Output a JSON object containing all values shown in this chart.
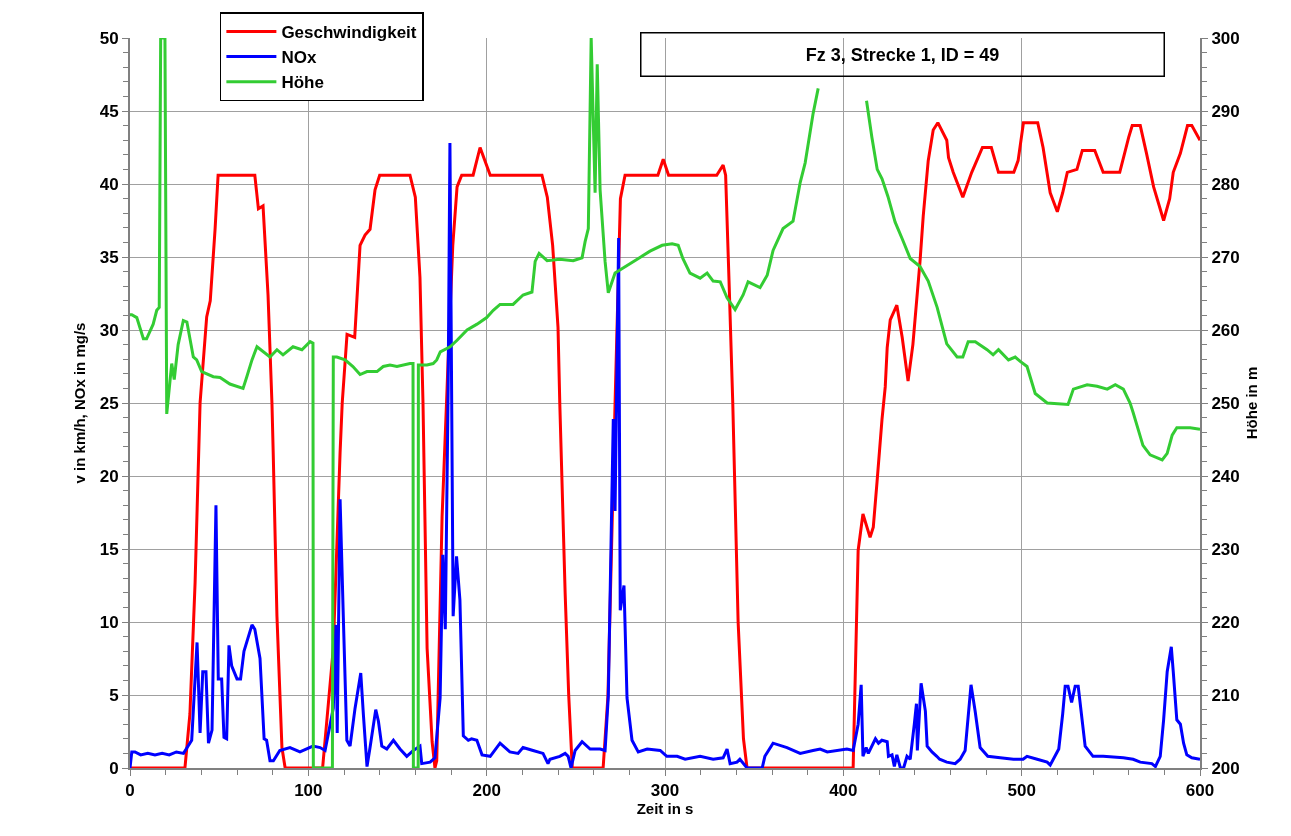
{
  "chart_data": {
    "type": "line",
    "title": "Fz 3, Strecke 1, ID = 49",
    "xlabel": "Zeit in s",
    "ylabel": "v in km/h, NOx in mg/s",
    "y2label": "Höhe in m",
    "xlim": [
      0,
      600
    ],
    "xticks": [
      0,
      100,
      200,
      300,
      400,
      500,
      600
    ],
    "ylim": [
      0,
      50
    ],
    "yticks": [
      0,
      5,
      10,
      15,
      20,
      25,
      30,
      35,
      40,
      45,
      50
    ],
    "y2lim": [
      200,
      300
    ],
    "y2ticks": [
      200,
      210,
      220,
      230,
      240,
      250,
      260,
      270,
      280,
      290,
      300
    ],
    "grid": true,
    "legend": "top left",
    "marker": "none",
    "line_style": "solid",
    "series": [
      {
        "name": "Geschwindigkeit",
        "color": "#ff0000",
        "x": [
          0,
          30.8,
          33.6,
          36.5,
          39.3,
          43,
          45,
          47.7,
          49.4,
          50,
          70,
          72,
          74.6,
          77.4,
          79.6,
          80.3,
          82.4,
          85.2,
          87,
          108,
          114,
          117.8,
          119,
          121.7,
          126,
          129,
          131.8,
          134.6,
          137.4,
          140,
          157,
          160,
          162.6,
          164.3,
          166.6,
          169.4,
          171,
          172,
          175,
          177.8,
          178.4,
          181,
          183.4,
          186,
          192.4,
          196.3,
          202,
          231,
          234,
          237,
          240,
          241,
          244,
          246,
          248,
          265.3,
          268,
          272,
          275,
          277.6,
          296,
          299,
          302,
          329,
          332.6,
          334,
          336,
          338,
          341,
          344,
          346,
          405.5,
          408.3,
          411,
          415,
          416.8,
          418.9,
          421.7,
          423.5,
          424.6,
          426.3,
          430,
          433,
          436.3,
          439,
          443,
          444.8,
          447.6,
          450.4,
          453,
          458,
          459,
          461.6,
          467,
          472,
          478,
          483,
          487,
          495.6,
          498,
          501,
          509,
          512,
          516,
          520,
          523,
          525.6,
          531,
          534,
          541,
          545.7,
          555,
          560,
          562,
          566.5,
          570,
          574,
          579.6,
          583,
          585,
          589,
          593,
          595.4,
          600
        ],
        "values": [
          0,
          0,
          3.7,
          12.7,
          25,
          30.9,
          32,
          36.9,
          40.6,
          40.6,
          40.6,
          38.3,
          38.5,
          32.4,
          25,
          21.6,
          10.4,
          1.4,
          0,
          0,
          8.2,
          21.6,
          25,
          29.7,
          29.5,
          35.8,
          36.5,
          36.9,
          39.6,
          40.6,
          40.6,
          39.1,
          33.6,
          25,
          8.2,
          1.8,
          0,
          0.5,
          17.2,
          26,
          28,
          35.8,
          39.8,
          40.6,
          40.6,
          42.5,
          40.6,
          40.6,
          39.1,
          35.8,
          30.2,
          25,
          12,
          5,
          0,
          0,
          4.9,
          25,
          39,
          40.6,
          40.6,
          41.7,
          40.6,
          40.6,
          41.3,
          40.6,
          33,
          25,
          10,
          2,
          0,
          0,
          14.9,
          17.4,
          15.8,
          16.5,
          19.6,
          23.9,
          26.1,
          28.8,
          30.7,
          31.7,
          29.5,
          26.5,
          29,
          34.7,
          37.8,
          41.6,
          43.7,
          44.2,
          43,
          41.8,
          40.8,
          39.1,
          40.8,
          42.5,
          42.5,
          40.8,
          40.8,
          41.6,
          44.2,
          44.2,
          42.5,
          39.4,
          38.1,
          39.4,
          40.8,
          41,
          42.3,
          42.3,
          40.8,
          40.8,
          43.2,
          44,
          44,
          42.1,
          39.8,
          37.5,
          39,
          40.8,
          42.1,
          44,
          44,
          43
        ]
      },
      {
        "name": "NOx",
        "color": "#0000ff",
        "x": [
          0,
          1,
          2.8,
          6,
          10,
          14,
          18,
          22,
          26,
          30,
          34.6,
          37.6,
          39.3,
          40.8,
          42.6,
          44,
          46,
          48.2,
          49.5,
          51.4,
          52.7,
          54.2,
          55.5,
          57,
          60,
          62,
          63.9,
          68.4,
          70,
          72.9,
          75.2,
          76.6,
          78.5,
          80.4,
          84,
          89.7,
          95.3,
          102.6,
          106.6,
          109.4,
          114,
          115.5,
          116.2,
          117.8,
          119.6,
          121.6,
          123.4,
          126.2,
          129.4,
          130.9,
          132.9,
          134.6,
          137.8,
          139.3,
          141.2,
          144,
          147.7,
          151.4,
          155.2,
          158.9,
          162.6,
          163.6,
          168.3,
          171,
          173.9,
          175.4,
          176.8,
          178.4,
          179.4,
          181.2,
          183.1,
          185,
          186.9,
          189.7,
          191.5,
          194.5,
          197.4,
          202,
          207.5,
          213,
          217.6,
          220.4,
          226,
          231.6,
          234.4,
          235.5,
          241,
          244,
          245.7,
          247.3,
          249.6,
          253.5,
          258,
          263.6,
          266.4,
          268.2,
          271,
          272,
          274,
          274.9,
          277,
          278.7,
          281.5,
          285,
          290,
          297.3,
          301,
          306.8,
          311.3,
          319.7,
          327,
          332.6,
          334.8,
          336.5,
          340.4,
          342,
          346,
          354.5,
          356,
          360.6,
          368.4,
          375.8,
          383,
          387,
          391,
          402,
          405.5,
          408.3,
          410,
          411,
          412.8,
          414,
          418,
          419.7,
          421.6,
          424.6,
          425.3,
          427.3,
          428.6,
          430,
          432,
          433.8,
          435.7,
          437.5,
          439.8,
          441,
          441.5,
          443.6,
          446,
          447,
          449.7,
          452.4,
          454,
          458,
          462.7,
          465.5,
          468.3,
          471.6,
          473.9,
          476.7,
          481,
          488,
          495.4,
          500.8,
          503,
          508.7,
          514.3,
          516,
          520.8,
          523,
          524.4,
          526,
          528,
          530,
          531.7,
          535.6,
          540,
          545.7,
          557,
          562.5,
          566.5,
          573,
          575,
          577.7,
          579.6,
          581.6,
          583.9,
          585,
          587,
          589,
          590.8,
          592.6,
          595.4,
          600
        ],
        "values": [
          0,
          1.1,
          1.1,
          0.9,
          1.0,
          0.9,
          1.0,
          0.9,
          1.1,
          1.0,
          1.9,
          8.6,
          2.4,
          6.6,
          6.6,
          1.7,
          2.6,
          18,
          6.1,
          6.1,
          2.1,
          2.0,
          8.4,
          7.0,
          6.1,
          6.1,
          8,
          9.8,
          9.5,
          7.5,
          2.0,
          1.9,
          0.5,
          0.5,
          1.2,
          1.4,
          1.1,
          1.5,
          1.4,
          1.2,
          4.1,
          9.8,
          2.4,
          18.4,
          10.4,
          1.9,
          1.5,
          4.1,
          6.5,
          3.6,
          0.1,
          1.4,
          4.0,
          3.2,
          1.5,
          1.3,
          1.9,
          1.3,
          0.8,
          1.2,
          1.5,
          0.3,
          0.4,
          0.7,
          4.8,
          14.6,
          9.5,
          26,
          42.8,
          10.4,
          14.5,
          11.5,
          2.2,
          1.9,
          2.0,
          1.9,
          0.9,
          0.8,
          1.7,
          1.1,
          1.0,
          1.4,
          1.2,
          1.0,
          0.3,
          0.6,
          0.8,
          1.0,
          0.8,
          0,
          1.2,
          1.8,
          1.3,
          1.3,
          1.2,
          4.9,
          23.9,
          17.6,
          36.3,
          10.8,
          12.5,
          4.8,
          1.9,
          1.1,
          1.3,
          1.2,
          0.8,
          0.8,
          0.6,
          0.8,
          0.6,
          0.7,
          1.3,
          0.3,
          0.4,
          0.6,
          0,
          0,
          0.8,
          1.7,
          1.4,
          1.0,
          1.2,
          1.3,
          1.1,
          1.3,
          1.2,
          3.0,
          5.7,
          0.8,
          1.4,
          1.0,
          2.0,
          1.7,
          1.9,
          1.8,
          0.8,
          0.9,
          0.1,
          0.9,
          0,
          0,
          0.8,
          0.6,
          3.0,
          4.4,
          1.2,
          5.8,
          3.9,
          1.5,
          1.1,
          0.8,
          0.6,
          0.4,
          0.3,
          0.6,
          1.2,
          5.7,
          3.9,
          1.4,
          0.8,
          0.7,
          0.6,
          0.6,
          0.8,
          0.6,
          0.4,
          0.2,
          1.3,
          3.7,
          5.6,
          5.6,
          4.5,
          5.6,
          5.6,
          1.5,
          0.8,
          0.8,
          0.7,
          0.6,
          0.4,
          0.3,
          0.1,
          0.8,
          3.3,
          6.6,
          8.3,
          6.6,
          3.3,
          3.0,
          1.7,
          0.9,
          0.7,
          0.6
        ]
      },
      {
        "name": "Höhe",
        "color": "#33cc33",
        "axis": "y2",
        "x": [
          0,
          1,
          3.8,
          7.5,
          9.3,
          13,
          15,
          16.4,
          17.2,
          19.6,
          20.6,
          23.4,
          24.8,
          27,
          29.9,
          31.9,
          35.5,
          37.4,
          40.2,
          46.7,
          50.5,
          56,
          63.4,
          65.5,
          68.4,
          71.2,
          78.5,
          82.4,
          85.8,
          91.4,
          96.4,
          101,
          102.6,
          102.8,
          113.5,
          114,
          116,
          120.6,
          125,
          129,
          132.9,
          138.5,
          142,
          145.8,
          149.7,
          157,
          158.7,
          158.9,
          161.6,
          161.7,
          166.5,
          170,
          172,
          174,
          179.5,
          183.4,
          189,
          194.6,
          200,
          203.7,
          207.5,
          214.8,
          220.4,
          225.4,
          227.2,
          229.4,
          233.9,
          241,
          248.5,
          253.5,
          255.2,
          257,
          258.6,
          260.8,
          262,
          263.6,
          266.4,
          268.2,
          272,
          276.5,
          284.4,
          291.6,
          298.4,
          304,
          307.4,
          310,
          314,
          319.7,
          323.6,
          327,
          331,
          334.8,
          339.3,
          343.8,
          346.6,
          353.3,
          357.3,
          360.6,
          366.2,
          371.8,
          375.8,
          378.6,
          383,
          385.9,
          389.8,
          394,
          400,
          410.5,
          411,
          413,
          416,
          419,
          421.7,
          425,
          429,
          433,
          437.5,
          443,
          447.6,
          452.6,
          458,
          463.8,
          467,
          470,
          474,
          480.6,
          484,
          487,
          492.6,
          496.4,
          499.2,
          503,
          507.6,
          514.3,
          526,
          529,
          536.7,
          542.3,
          548,
          552.5,
          557,
          560.8,
          562.5,
          564.7,
          568,
          572,
          578.8,
          581.6,
          584.4,
          587,
          594.5,
          600
        ],
        "values": [
          262.1,
          262.1,
          261.7,
          258.8,
          258.8,
          260.8,
          262.7,
          263.1,
          300,
          300,
          248.5,
          255.4,
          253.2,
          258,
          261.3,
          261.1,
          256.3,
          255.9,
          254.3,
          253.6,
          253.5,
          252.6,
          252,
          253.6,
          255.9,
          257.7,
          256.3,
          257.3,
          256.6,
          257.7,
          257.3,
          258.4,
          258.2,
          200,
          200,
          256.3,
          256.3,
          255.9,
          255,
          253.9,
          254.3,
          254.3,
          255,
          255.2,
          255,
          255.4,
          255.4,
          200,
          200,
          255.2,
          255.2,
          255.4,
          255.9,
          257,
          257.7,
          258.6,
          260,
          260.8,
          261.7,
          262.7,
          263.5,
          263.5,
          264.8,
          265.2,
          269.4,
          270.5,
          269.5,
          269.7,
          269.5,
          269.9,
          272.1,
          273.9,
          300,
          278.8,
          296.4,
          279.2,
          269.4,
          265.1,
          267.8,
          268.5,
          269.7,
          270.8,
          271.6,
          271.8,
          271.6,
          269.8,
          267.8,
          267.1,
          267.8,
          266.7,
          266.6,
          264.4,
          262.8,
          264.8,
          266.6,
          265.8,
          267.5,
          270.9,
          273.9,
          274.9,
          280.2,
          282.9,
          289.6,
          293.1,
          null,
          null,
          null,
          null,
          null,
          291.4,
          286.4,
          282,
          280.7,
          278.3,
          274.8,
          272.5,
          269.8,
          268.7,
          266.7,
          263.1,
          258.1,
          256.3,
          256.3,
          258.4,
          258.4,
          257.3,
          256.6,
          257.3,
          255.9,
          256.3,
          255.7,
          255,
          251.3,
          250,
          249.8,
          251.9,
          252.5,
          252.3,
          251.9,
          252.5,
          251.9,
          250,
          248.7,
          246.9,
          244.2,
          242.9,
          242.2,
          243.1,
          245.6,
          246.6,
          246.6,
          246.4
        ]
      }
    ]
  }
}
